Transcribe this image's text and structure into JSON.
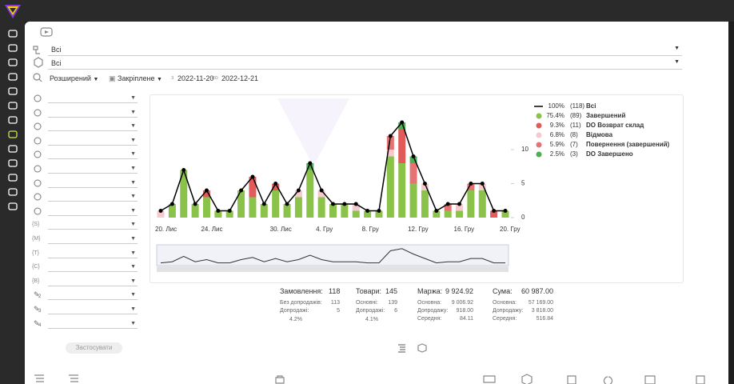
{
  "filters": {
    "row1": "Всі",
    "row2": "Всі",
    "mode": "Розширений",
    "pinned": "Закріплене",
    "from_label": "з",
    "date_from": "2022-11-20",
    "to_label": "по",
    "date_to": "2022-12-21",
    "tags": [
      "{S}",
      "{M}",
      "{T}",
      "{C}",
      "{B}"
    ],
    "pencils": [
      "1",
      "2",
      "3",
      "4"
    ],
    "apply": "Застосувати"
  },
  "chart_data": {
    "type": "bar",
    "stacked": true,
    "categories": [
      "20. Лис",
      null,
      null,
      null,
      "24. Лис",
      null,
      null,
      null,
      null,
      null,
      "30. Лис",
      null,
      null,
      null,
      "4. Гру",
      null,
      null,
      null,
      "8. Гру",
      null,
      null,
      null,
      "12. Гру",
      null,
      null,
      null,
      "16. Гру",
      null,
      null,
      null,
      "20. Гру"
    ],
    "total": {
      "name": "Всі",
      "color": "#000000",
      "share": "100%",
      "count": "(118)",
      "values": [
        1,
        2,
        7,
        2,
        4,
        1,
        1,
        4,
        6,
        2,
        5,
        2,
        4,
        8,
        4,
        2,
        2,
        2,
        1,
        1,
        12,
        14,
        9,
        5,
        1,
        2,
        2,
        5,
        5,
        1,
        1
      ]
    },
    "series": [
      {
        "name": "Завершений",
        "color": "#8bc34a",
        "share": "75.4%",
        "count": "(89)",
        "values": [
          0,
          2,
          7,
          2,
          3,
          1,
          1,
          4,
          3,
          2,
          4,
          2,
          3,
          7,
          3,
          2,
          2,
          1,
          1,
          1,
          9,
          8,
          5,
          4,
          1,
          1,
          1,
          4,
          4,
          0,
          1
        ]
      },
      {
        "name": "DO Возврат склад",
        "color": "#e15b5b",
        "share": "9.3%",
        "count": "(11)",
        "values": [
          0,
          0,
          0,
          0,
          1,
          0,
          0,
          0,
          3,
          0,
          1,
          0,
          0,
          0,
          0,
          0,
          0,
          0,
          0,
          0,
          0,
          5,
          0,
          0,
          0,
          0,
          0,
          0,
          0,
          1,
          0
        ]
      },
      {
        "name": "Відмова",
        "color": "#f6c9ce",
        "share": "6.8%",
        "count": "(8)",
        "values": [
          1,
          0,
          0,
          0,
          0,
          0,
          0,
          0,
          0,
          0,
          0,
          0,
          1,
          0,
          1,
          0,
          0,
          1,
          0,
          0,
          1,
          0,
          0,
          1,
          0,
          0,
          1,
          0,
          1,
          0,
          0
        ]
      },
      {
        "name": "Повернення (завершений)",
        "color": "#e57373",
        "share": "5.9%",
        "count": "(7)",
        "values": [
          0,
          0,
          0,
          0,
          0,
          0,
          0,
          0,
          0,
          0,
          0,
          0,
          0,
          0,
          0,
          0,
          0,
          0,
          0,
          0,
          2,
          0,
          3,
          0,
          0,
          1,
          0,
          1,
          0,
          0,
          0
        ]
      },
      {
        "name": "DO Завершено",
        "color": "#4caf50",
        "share": "2.5%",
        "count": "(3)",
        "values": [
          0,
          0,
          0,
          0,
          0,
          0,
          0,
          0,
          0,
          0,
          0,
          0,
          0,
          1,
          0,
          0,
          0,
          0,
          0,
          0,
          0,
          1,
          1,
          0,
          0,
          0,
          0,
          0,
          0,
          0,
          0
        ]
      }
    ],
    "ylim": [
      0,
      16
    ],
    "yticks": [
      0,
      5,
      10
    ],
    "grid": false
  },
  "summary": [
    {
      "title": "Замовлення:",
      "value": "118",
      "rows": [
        [
          "Без допродажів:",
          "113"
        ],
        [
          "Допродажі:",
          "5"
        ]
      ],
      "share": "4.2%"
    },
    {
      "title": "Товари:",
      "value": "145",
      "rows": [
        [
          "Основні:",
          "139"
        ],
        [
          "Допродажі:",
          "6"
        ]
      ],
      "share": "4.1%"
    },
    {
      "title": "Маржа:",
      "value": "9 924.92",
      "rows": [
        [
          "Основна:",
          "9 006.92"
        ],
        [
          "Допродажу:",
          "918.00"
        ],
        [
          "Середня:",
          "84.11"
        ]
      ]
    },
    {
      "title": "Сума:",
      "value": "60 987.00",
      "rows": [
        [
          "Основна:",
          "57 169.00"
        ],
        [
          "Допродажу:",
          "3 818.00"
        ],
        [
          "Середня:",
          "516.84"
        ]
      ]
    }
  ]
}
